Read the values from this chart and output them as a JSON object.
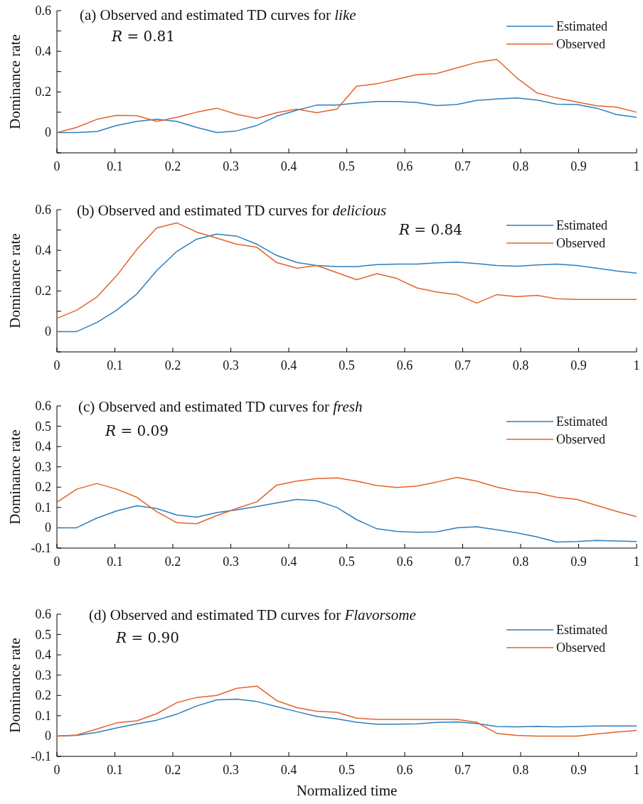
{
  "chart_data": [
    {
      "type": "line",
      "title": "(a)  Observed and estimated TD curves for like",
      "annotations": [
        "R = 0.81"
      ],
      "ylabel": "Dominance rate",
      "legend": "top right",
      "xlim": [
        0,
        1
      ],
      "ylim": [
        -0.1,
        0.6
      ],
      "xticks": [
        0,
        0.1,
        0.2,
        0.3,
        0.4,
        0.5,
        0.6,
        0.7,
        0.8,
        0.9,
        1
      ],
      "yticks": [
        {
          "value": -0.1,
          "label": null
        },
        0,
        {
          "value": 0.1,
          "label": null
        },
        0.2,
        {
          "value": 0.3,
          "label": null
        },
        0.4,
        {
          "value": 0.5,
          "label": null
        },
        0.6
      ],
      "x": [
        0,
        0.034,
        0.069,
        0.103,
        0.138,
        0.172,
        0.207,
        0.241,
        0.276,
        0.31,
        0.345,
        0.379,
        0.414,
        0.448,
        0.483,
        0.517,
        0.552,
        0.586,
        0.621,
        0.655,
        0.69,
        0.724,
        0.759,
        0.793,
        0.828,
        0.862,
        0.897,
        0.931,
        0.966,
        1
      ],
      "series": [
        {
          "name": "Estimated",
          "color": "#2e7ebf",
          "values": [
            0,
            0,
            0.005,
            0.035,
            0.055,
            0.065,
            0.055,
            0.025,
            0,
            0.008,
            0.035,
            0.08,
            0.11,
            0.135,
            0.135,
            0.145,
            0.153,
            0.153,
            0.148,
            0.133,
            0.138,
            0.158,
            0.165,
            0.17,
            0.16,
            0.14,
            0.138,
            0.12,
            0.088,
            0.075
          ]
        },
        {
          "name": "Observed",
          "color": "#e3632b",
          "values": [
            0,
            0.025,
            0.065,
            0.085,
            0.083,
            0.055,
            0.075,
            0.1,
            0.12,
            0.09,
            0.07,
            0.098,
            0.115,
            0.098,
            0.115,
            0.228,
            0.24,
            0.262,
            0.285,
            0.29,
            0.318,
            0.345,
            0.36,
            0.27,
            0.195,
            0.17,
            0.15,
            0.132,
            0.125,
            0.1
          ]
        }
      ]
    },
    {
      "type": "line",
      "title": "(b) Observed and estimated TD curves for delicious",
      "annotations": [
        "R = 0.84"
      ],
      "ylabel": "Dominance rate",
      "legend": "top right",
      "xlim": [
        0,
        1
      ],
      "ylim": [
        -0.1,
        0.6
      ],
      "xticks": [
        0,
        0.1,
        0.2,
        0.3,
        0.4,
        0.5,
        0.6,
        0.7,
        0.8,
        0.9,
        1
      ],
      "yticks": [
        {
          "value": -0.1,
          "label": null
        },
        0,
        {
          "value": 0.1,
          "label": null
        },
        0.2,
        {
          "value": 0.3,
          "label": null
        },
        0.4,
        {
          "value": 0.5,
          "label": null
        },
        0.6
      ],
      "x": [
        0,
        0.034,
        0.069,
        0.103,
        0.138,
        0.172,
        0.207,
        0.241,
        0.276,
        0.31,
        0.345,
        0.379,
        0.414,
        0.448,
        0.483,
        0.517,
        0.552,
        0.586,
        0.621,
        0.655,
        0.69,
        0.724,
        0.759,
        0.793,
        0.828,
        0.862,
        0.897,
        0.931,
        0.966,
        1
      ],
      "series": [
        {
          "name": "Estimated",
          "color": "#2e7ebf",
          "values": [
            0,
            0,
            0.045,
            0.105,
            0.185,
            0.3,
            0.395,
            0.455,
            0.48,
            0.47,
            0.43,
            0.375,
            0.34,
            0.325,
            0.32,
            0.32,
            0.33,
            0.332,
            0.332,
            0.338,
            0.342,
            0.335,
            0.325,
            0.322,
            0.328,
            0.332,
            0.325,
            0.312,
            0.298,
            0.288
          ]
        },
        {
          "name": "Observed",
          "color": "#e3632b",
          "values": [
            0.065,
            0.105,
            0.17,
            0.275,
            0.405,
            0.51,
            0.535,
            0.49,
            0.46,
            0.43,
            0.415,
            0.34,
            0.312,
            0.325,
            0.29,
            0.255,
            0.285,
            0.262,
            0.215,
            0.195,
            0.182,
            0.14,
            0.182,
            0.172,
            0.178,
            0.162,
            0.158,
            0.158,
            0.158,
            0.158
          ]
        }
      ]
    },
    {
      "type": "line",
      "title": "(c) Observed and estimated TD curves for fresh",
      "annotations": [
        "R = 0.09"
      ],
      "ylabel": "Dominance rate",
      "legend": "top right",
      "xlim": [
        0,
        1
      ],
      "ylim": [
        -0.1,
        0.6
      ],
      "xticks": [
        0,
        0.1,
        0.2,
        0.3,
        0.4,
        0.5,
        0.6,
        0.7,
        0.8,
        0.9,
        1
      ],
      "yticks": [
        -0.1,
        0,
        0.1,
        0.2,
        0.3,
        0.4,
        0.5,
        0.6
      ],
      "x": [
        0,
        0.034,
        0.069,
        0.103,
        0.138,
        0.172,
        0.207,
        0.241,
        0.276,
        0.31,
        0.345,
        0.379,
        0.414,
        0.448,
        0.483,
        0.517,
        0.552,
        0.586,
        0.621,
        0.655,
        0.69,
        0.724,
        0.759,
        0.793,
        0.828,
        0.862,
        0.897,
        0.931,
        0.966,
        1
      ],
      "series": [
        {
          "name": "Estimated",
          "color": "#2e7ebf",
          "values": [
            0,
            0,
            0.048,
            0.083,
            0.108,
            0.095,
            0.063,
            0.052,
            0.075,
            0.088,
            0.105,
            0.122,
            0.14,
            0.133,
            0.1,
            0.04,
            -0.005,
            -0.018,
            -0.022,
            -0.02,
            0,
            0.005,
            -0.01,
            -0.025,
            -0.045,
            -0.07,
            -0.068,
            -0.062,
            -0.065,
            -0.068
          ]
        },
        {
          "name": "Observed",
          "color": "#e3632b",
          "values": [
            0.125,
            0.19,
            0.218,
            0.19,
            0.15,
            0.08,
            0.025,
            0.02,
            0.06,
            0.095,
            0.128,
            0.21,
            0.23,
            0.242,
            0.246,
            0.23,
            0.208,
            0.198,
            0.205,
            0.225,
            0.248,
            0.23,
            0.2,
            0.18,
            0.172,
            0.15,
            0.14,
            0.11,
            0.08,
            0.055
          ]
        }
      ]
    },
    {
      "type": "line",
      "title": "(d) Observed and estimated TD curves for Flavorsome",
      "annotations": [
        "R = 0.90"
      ],
      "xlabel": "Normalized time",
      "ylabel": "Dominance rate",
      "legend": "top right",
      "xlim": [
        0,
        1
      ],
      "ylim": [
        -0.1,
        0.6
      ],
      "xticks": [
        0,
        0.1,
        0.2,
        0.3,
        0.4,
        0.5,
        0.6,
        0.7,
        0.8,
        0.9,
        1
      ],
      "yticks": [
        -0.1,
        0,
        0.1,
        0.2,
        0.3,
        0.4,
        0.5,
        0.6
      ],
      "x": [
        0,
        0.034,
        0.069,
        0.103,
        0.138,
        0.172,
        0.207,
        0.241,
        0.276,
        0.31,
        0.345,
        0.379,
        0.414,
        0.448,
        0.483,
        0.517,
        0.552,
        0.586,
        0.621,
        0.655,
        0.69,
        0.724,
        0.759,
        0.793,
        0.828,
        0.862,
        0.897,
        0.931,
        0.966,
        1
      ],
      "series": [
        {
          "name": "Estimated",
          "color": "#2e7ebf",
          "values": [
            0,
            0.003,
            0.018,
            0.04,
            0.06,
            0.078,
            0.108,
            0.148,
            0.178,
            0.182,
            0.17,
            0.145,
            0.12,
            0.097,
            0.085,
            0.068,
            0.058,
            0.058,
            0.06,
            0.067,
            0.07,
            0.062,
            0.047,
            0.045,
            0.048,
            0.045,
            0.047,
            0.05,
            0.05,
            0.05
          ]
        },
        {
          "name": "Observed",
          "color": "#e3632b",
          "values": [
            0,
            0.005,
            0.035,
            0.065,
            0.075,
            0.11,
            0.165,
            0.19,
            0.2,
            0.235,
            0.246,
            0.175,
            0.14,
            0.122,
            0.117,
            0.088,
            0.082,
            0.082,
            0.082,
            0.082,
            0.082,
            0.068,
            0.013,
            0.003,
            0,
            0,
            0,
            0.01,
            0.02,
            0.028
          ]
        }
      ]
    }
  ]
}
